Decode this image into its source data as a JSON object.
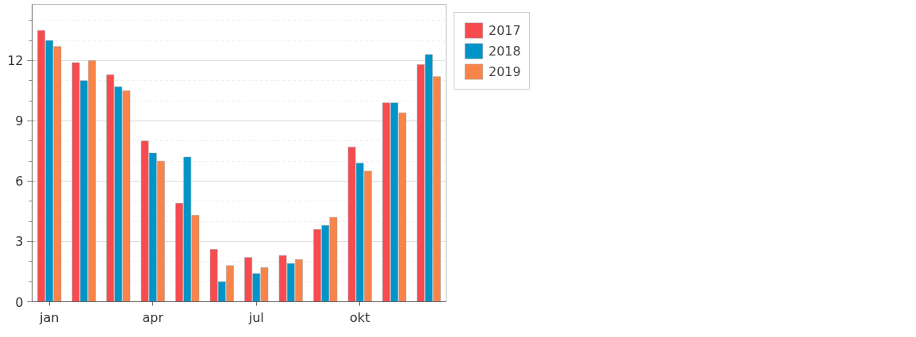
{
  "chart_data": {
    "type": "bar",
    "categories": [
      "jan",
      null,
      null,
      "apr",
      null,
      null,
      "jul",
      null,
      null,
      "okt",
      null,
      null
    ],
    "series": [
      {
        "name": "2017",
        "color": "#f84b4f",
        "values": [
          13.5,
          11.9,
          11.3,
          8.0,
          4.9,
          2.6,
          2.2,
          2.3,
          3.6,
          7.7,
          9.9,
          11.8
        ]
      },
      {
        "name": "2018",
        "color": "#0094c8",
        "values": [
          13.0,
          11.0,
          10.7,
          7.4,
          7.2,
          1.0,
          1.4,
          1.9,
          3.8,
          6.9,
          9.9,
          12.3
        ]
      },
      {
        "name": "2019",
        "color": "#f9844a",
        "values": [
          12.7,
          12.0,
          10.5,
          7.0,
          4.3,
          1.8,
          1.7,
          2.1,
          4.2,
          6.5,
          9.4,
          11.2
        ]
      }
    ],
    "ylim": [
      0,
      14.8
    ],
    "yticks": [
      0,
      3,
      6,
      9,
      12
    ],
    "grid": "y",
    "legend": "top right"
  }
}
